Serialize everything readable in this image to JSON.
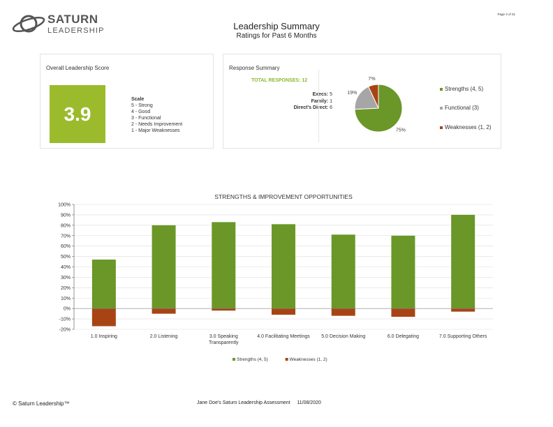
{
  "logo": {
    "line1": "SATURN",
    "line2": "LEADERSHIP"
  },
  "page_number": "Page 3 of 31",
  "header": {
    "title": "Leadership Summary",
    "subtitle": "Ratings for Past 6 Months"
  },
  "score_card": {
    "title": "Overall Leadership Score",
    "score": "3.9",
    "scale_title": "Scale",
    "scale": [
      "5 - Strong",
      "4 - Good",
      "3 - Functional",
      "2 - Needs Improvement",
      "1 - Major Weaknesses"
    ],
    "colors": {
      "score_box": "#9bbb2c"
    }
  },
  "response_card": {
    "title": "Response Summary",
    "total": "TOTAL RESPONSES: 12",
    "rows": [
      {
        "label": "Execs:",
        "value": "5"
      },
      {
        "label": "Family:",
        "value": "1"
      },
      {
        "label": "Direct's Direct:",
        "value": "6"
      }
    ],
    "pie": {
      "type": "pie",
      "slices": [
        {
          "label": "Strengths (4, 5)",
          "value": 75,
          "pct_label": "75%",
          "color": "#6a9728"
        },
        {
          "label": "Functional (3)",
          "value": 19,
          "pct_label": "19%",
          "color": "#a6a6a6"
        },
        {
          "label": "Weaknesses (1, 2)",
          "value": 7,
          "pct_label": "7%",
          "color": "#a84414"
        }
      ]
    }
  },
  "chart_data": {
    "type": "bar",
    "title": "STRENGTHS & IMPROVEMENT OPPORTUNITIES",
    "categories": [
      [
        "1.0 Inspiring"
      ],
      [
        "2.0 Listening"
      ],
      [
        "3.0 Speaking",
        "Transparently"
      ],
      [
        "4.0 Facilitating Meetings"
      ],
      [
        "5.0 Decision Making"
      ],
      [
        "6.0 Delegating"
      ],
      [
        "7.0 Supporting Others"
      ]
    ],
    "series": [
      {
        "name": "Strengths (4, 5)",
        "values": [
          47,
          80,
          83,
          81,
          71,
          70,
          90
        ],
        "color": "#6a9728"
      },
      {
        "name": "Weaknesses (1, 2)",
        "values": [
          -17,
          -5,
          -2,
          -6,
          -7,
          -8,
          -3
        ],
        "color": "#a84414"
      }
    ],
    "ylim": [
      -20,
      100
    ],
    "yticks": [
      -20,
      -10,
      0,
      10,
      20,
      30,
      40,
      50,
      60,
      70,
      80,
      90,
      100
    ],
    "ytick_labels": [
      "-20%",
      "-10%",
      "0%",
      "10%",
      "20%",
      "30%",
      "40%",
      "50%",
      "60%",
      "70%",
      "80%",
      "90%",
      "100%"
    ],
    "grid": true,
    "legend": "bottom"
  },
  "footer": {
    "left": "© Saturn Leadership™",
    "center": "Jane Doe's Saturn Leadership Assessment     11/08/2020"
  }
}
